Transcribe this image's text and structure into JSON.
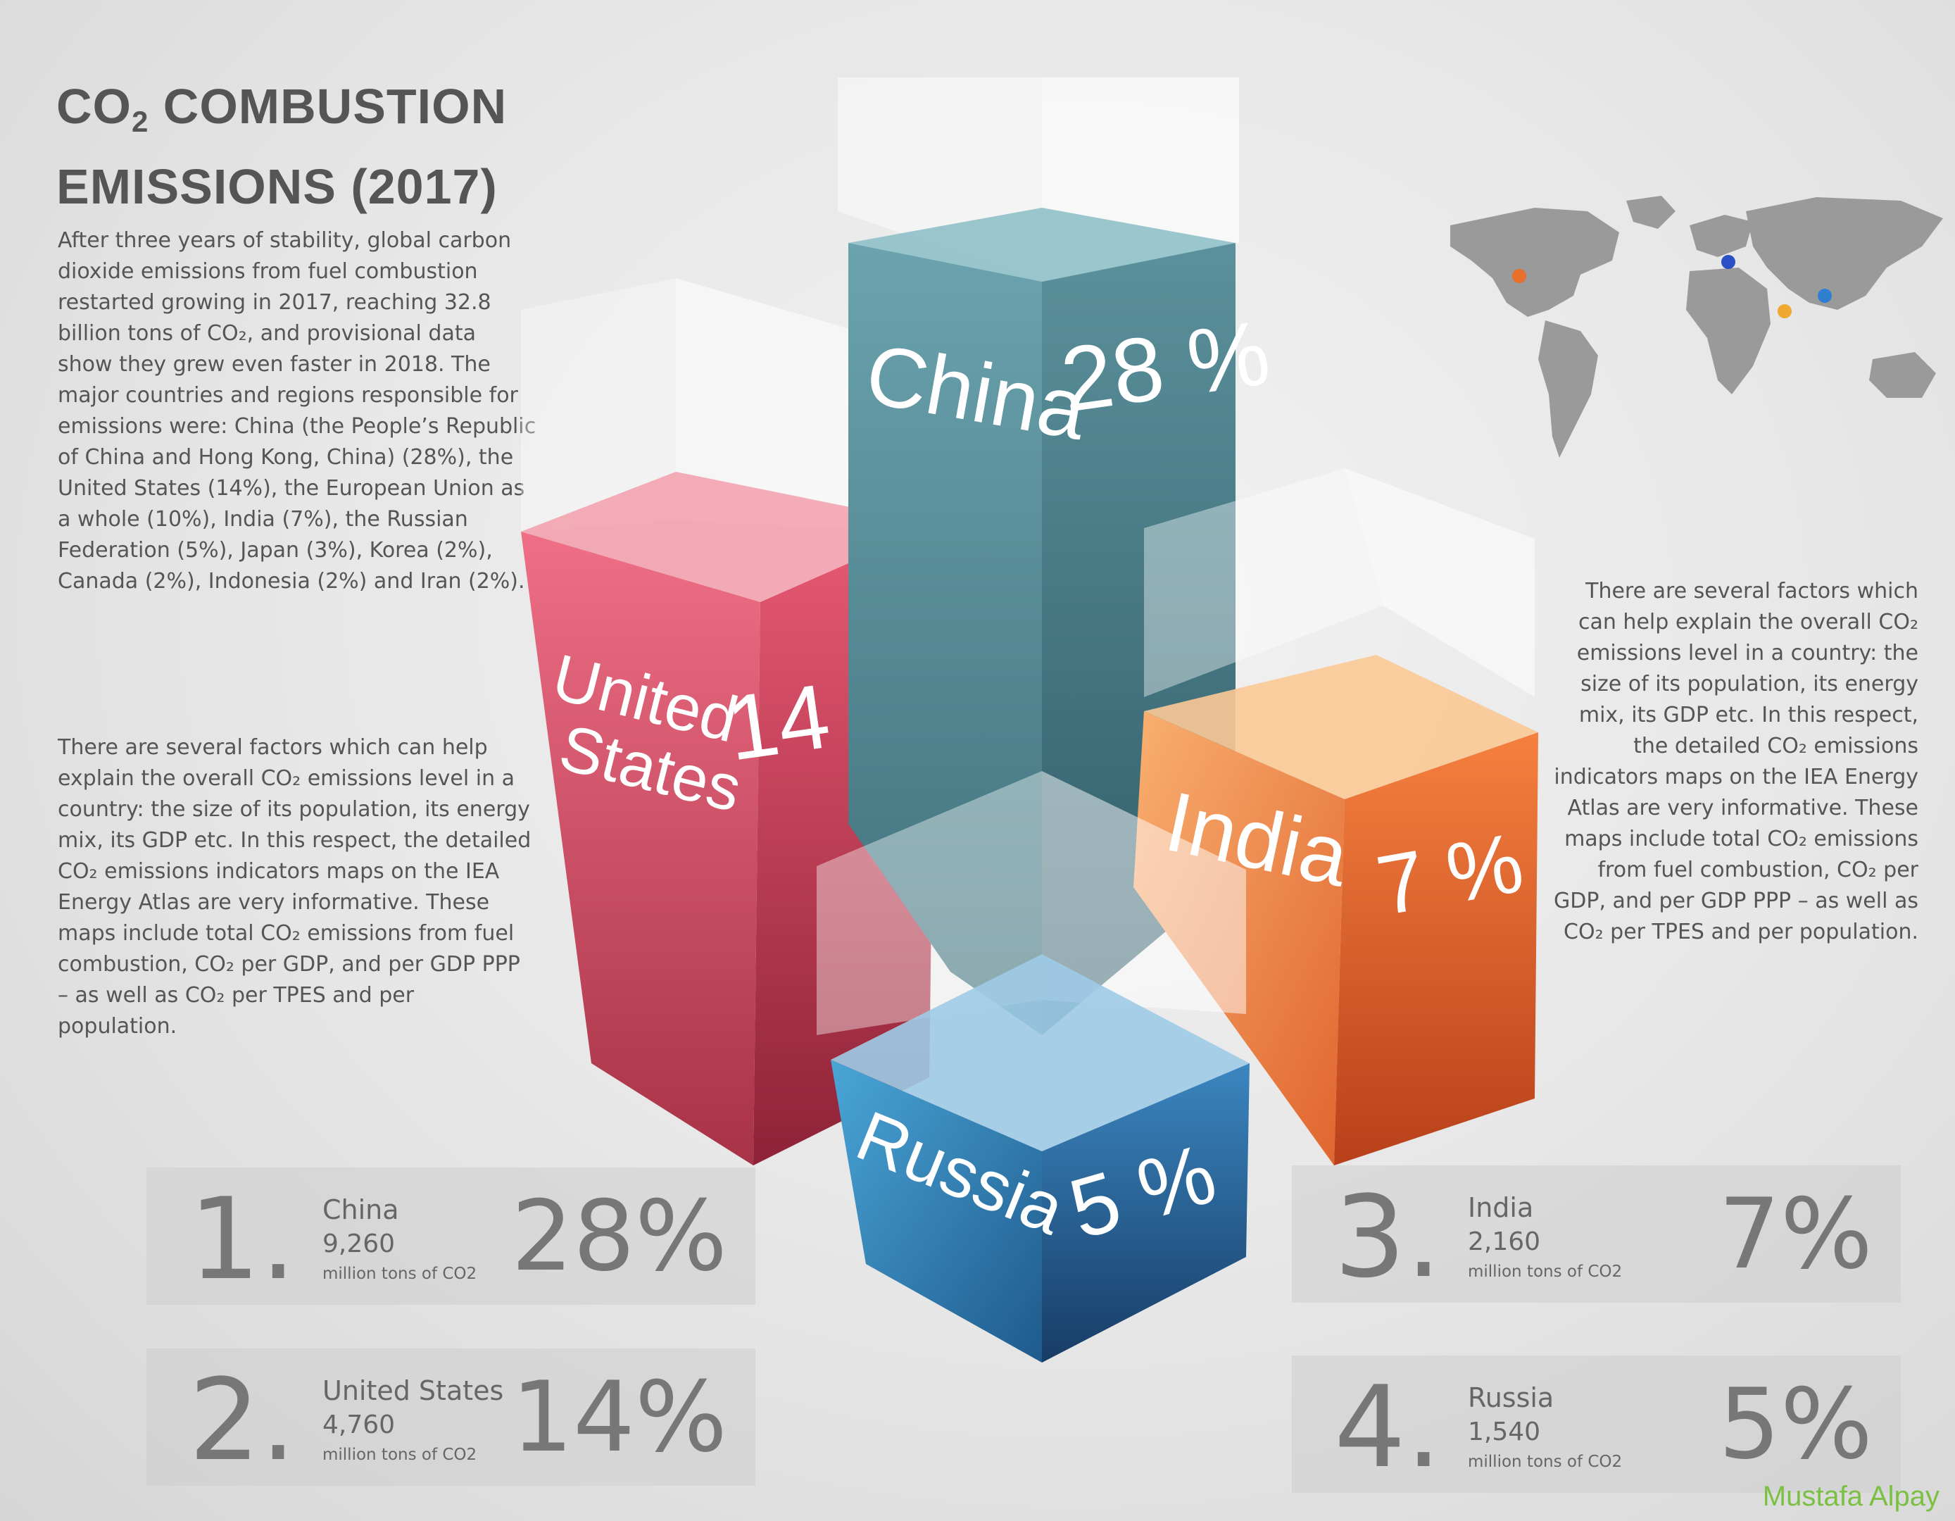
{
  "title": {
    "line1_prefix": "CO",
    "line1_sub": "2",
    "line1_suffix": " COMBUSTION",
    "line2": "EMISSIONS (2017)"
  },
  "paragraph_left_1": "After three years of stability, global carbon dioxide emissions from fuel combustion restarted growing in 2017, reaching 32.8 billion tons of CO₂, and provisional data show they grew even faster in 2018. The major countries and regions responsible for emissions were: China (the People’s Republic of China and Hong Kong, China)  (28%), the United States (14%), the European Union as a whole (10%), India (7%), the Russian Federation (5%), Japan (3%), Korea (2%), Canada (2%), Indonesia (2%) and Iran (2%).",
  "paragraph_left_2": "There are several factors which can help explain the overall CO₂ emissions level in a country: the size of its population, its energy mix, its GDP etc. In this respect, the detailed CO₂ emissions indicators maps on the IEA Energy Atlas are very informative. These maps include total CO₂ emissions from fuel combustion, CO₂ per GDP, and per GDP PPP – as well as CO₂ per TPES and per population.",
  "paragraph_right": "There are several factors which can help explain the overall CO₂ emissions level in a country: the size of its population, its energy mix, its GDP etc. In this respect, the detailed CO₂ emissions indicators maps on the IEA Energy Atlas are very informative. These maps include total CO₂ emissions from fuel combustion, CO₂ per GDP, and per GDP PPP – as well as CO₂ per TPES and per population.",
  "chart_data": {
    "type": "bar",
    "categories": [
      "China",
      "United States",
      "India",
      "Russia"
    ],
    "values": [
      28,
      14,
      7,
      5
    ],
    "value_labels": [
      "28 %",
      "14 %",
      "7 %",
      "5 %"
    ],
    "colors": [
      "#4f8c99",
      "#e0556f",
      "#f47a45",
      "#2f7fb8"
    ]
  },
  "ranking": [
    {
      "rank": "1.",
      "country": "China",
      "value": "9,260",
      "unit": "million tons of CO2",
      "percent": "28%"
    },
    {
      "rank": "2.",
      "country": "United States",
      "value": "4,760",
      "unit": "million tons of CO2",
      "percent": "14%"
    },
    {
      "rank": "3.",
      "country": "India",
      "value": "2,160",
      "unit": "million tons of CO2",
      "percent": "7%"
    },
    {
      "rank": "4.",
      "country": "Russia",
      "value": "1,540",
      "unit": "million tons of CO2",
      "percent": "5%"
    }
  ],
  "map": {
    "dots": [
      {
        "country": "United States",
        "color": "#e8702a"
      },
      {
        "country": "Russia",
        "color": "#2b4fc4"
      },
      {
        "country": "India",
        "color": "#f0a830"
      },
      {
        "country": "China",
        "color": "#2f7fd0"
      }
    ]
  },
  "signature": "Mustafa Alpay"
}
